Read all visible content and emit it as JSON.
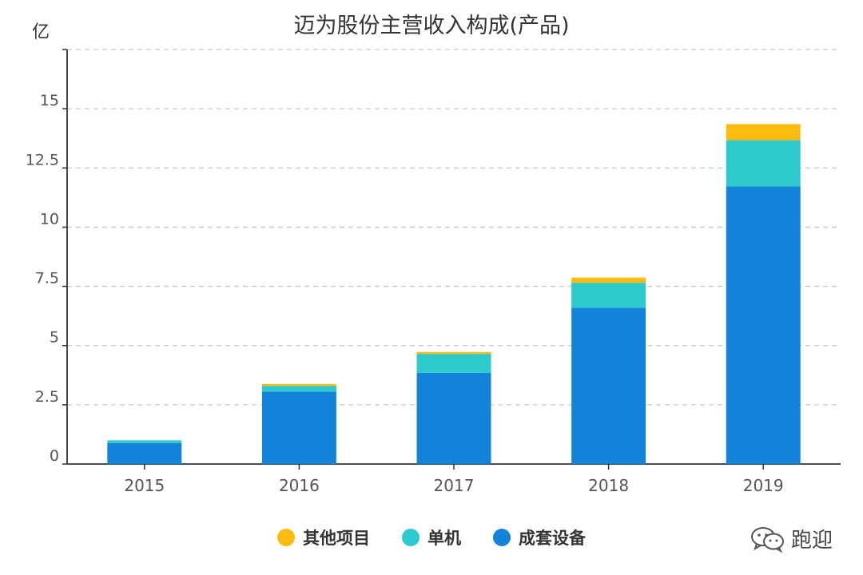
{
  "unit_label": "亿",
  "watermark": {
    "text": "跑迎",
    "icon": "wechat-icon"
  },
  "colors": {
    "axis": "#333333",
    "grid": "#c8c8c8",
    "tick_text": "#555555"
  },
  "chart_data": {
    "type": "bar",
    "stacked": true,
    "title": "迈为股份主营收入构成(产品)",
    "xlabel": "",
    "ylabel": "亿",
    "categories": [
      "2015",
      "2016",
      "2017",
      "2018",
      "2019"
    ],
    "ylim": [
      0,
      17.5
    ],
    "yticks": [
      0,
      2.5,
      5,
      7.5,
      10,
      12.5,
      15
    ],
    "ytick_labels": [
      "0",
      "2.5",
      "5",
      "7.5",
      "10",
      "12.5",
      "15"
    ],
    "grid": true,
    "legend_position": "bottom",
    "series": [
      {
        "name": "成套设备",
        "color": "#1283d8",
        "values": [
          0.88,
          3.05,
          3.85,
          6.6,
          11.72
        ]
      },
      {
        "name": "单机",
        "color": "#2ec9cc",
        "values": [
          0.12,
          0.25,
          0.8,
          1.05,
          1.95
        ]
      },
      {
        "name": "其他项目",
        "color": "#fbbc0f",
        "values": [
          0.0,
          0.08,
          0.08,
          0.22,
          0.68
        ]
      }
    ],
    "legend_order": [
      "其他项目",
      "单机",
      "成套设备"
    ]
  }
}
